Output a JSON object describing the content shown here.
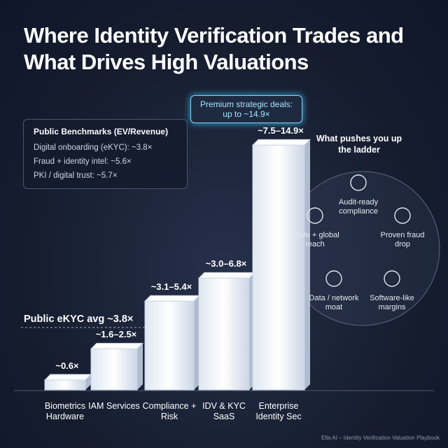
{
  "chart_data": {
    "type": "bar",
    "title": "Where Identity Verification Trades and What Drives High Valuations",
    "categories": [
      "Biometrics Hardware",
      "IAM Services",
      "Compliance + Risk",
      "IDV & KYC SaaS",
      "Enterprise Identity Sec"
    ],
    "values": [
      0.6,
      2.5,
      5.4,
      6.8,
      14.9
    ],
    "value_labels": [
      "~0.6×",
      "~1.6–2.5×",
      "~3.1–5.4×",
      "~3.0–6.8×",
      "~7.5–14.9×"
    ],
    "color": "#eef3fa",
    "ylim": [
      0,
      15
    ],
    "reference_line": {
      "label": "Public eKYC avg ~3.8×",
      "value": 3.8
    },
    "callout": "Premium strategic deals: up to ~14.9×",
    "benchmarks": {
      "title": "Public Benchmarks (EV/Revenue)",
      "items": [
        "Digital onboarding (eKYC): ~3.8×",
        "Fraud + identity intel: ~5.6×",
        "PKI / digital trust: ~5.7×"
      ]
    },
    "drivers": {
      "title": "What pushes you up the ladder",
      "items": [
        "Audit-ready compliance",
        "Scale + global reach",
        "Proven fraud drop",
        "Data / network moat",
        "Software-like margins"
      ]
    },
    "footer": "Ella AI – Identity Verification Valuation Playbook"
  }
}
